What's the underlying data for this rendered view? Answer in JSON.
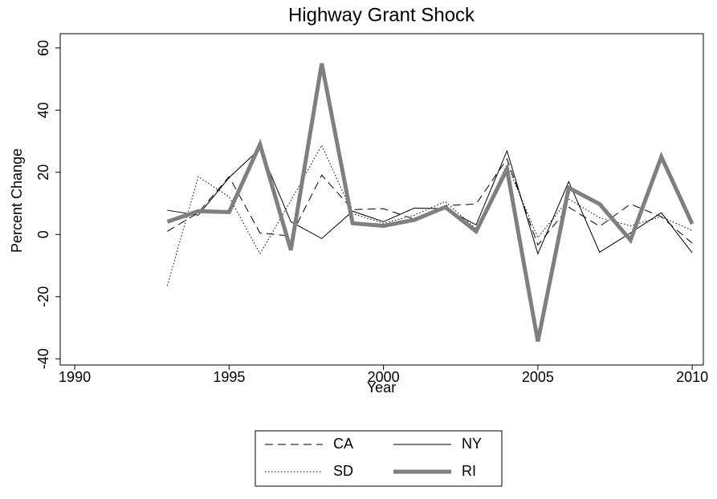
{
  "chart_data": {
    "type": "line",
    "title": "Highway Grant Shock",
    "x_label": "Year",
    "y_label": "Percent Change",
    "x": [
      1993,
      1994,
      1995,
      1996,
      1997,
      1998,
      1999,
      2000,
      2001,
      2002,
      2003,
      2004,
      2005,
      2006,
      2007,
      2008,
      2009,
      2010
    ],
    "series": [
      {
        "name": "CA",
        "color": "#000000",
        "dash": "dashed",
        "width": 1,
        "values": [
          1,
          7,
          18.6,
          0.5,
          -0.5,
          19.1,
          8,
          8.3,
          4.9,
          9.3,
          9.8,
          24.3,
          -3.4,
          8.8,
          2.6,
          9.8,
          5.7,
          -2.8
        ]
      },
      {
        "name": "NY",
        "color": "#000000",
        "dash": "solid",
        "width": 1,
        "values": [
          7.8,
          6.2,
          18.3,
          27.6,
          4.1,
          -1.3,
          7.5,
          4.1,
          8.5,
          8.3,
          3.1,
          26.9,
          -6.2,
          17,
          -5.7,
          0.5,
          7,
          -5.9
        ]
      },
      {
        "name": "SD",
        "color": "#000000",
        "dash": "dotted",
        "width": 1,
        "values": [
          -16.5,
          18.6,
          12.1,
          -6.2,
          10.9,
          28.7,
          6.7,
          3.6,
          6.2,
          10.6,
          1.8,
          22.5,
          -1,
          11.4,
          5.4,
          2.8,
          5.7,
          1.3
        ]
      },
      {
        "name": "RI",
        "color": "#7f7f7f",
        "dash": "solid",
        "width": 5,
        "values": [
          4.1,
          7.5,
          7.2,
          29,
          -5,
          55,
          3.6,
          2.8,
          4.7,
          8.8,
          1,
          21,
          -34.4,
          15,
          9.8,
          -1.8,
          25,
          3.4
        ]
      }
    ],
    "xlim": [
      1989.53,
      2010.36
    ],
    "xticks": [
      1990,
      1995,
      2000,
      2005,
      2010
    ],
    "ylim": [
      -42,
      64.6
    ],
    "yticks": [
      -40,
      -20,
      0,
      20,
      40,
      60
    ],
    "legend": "bottom"
  }
}
